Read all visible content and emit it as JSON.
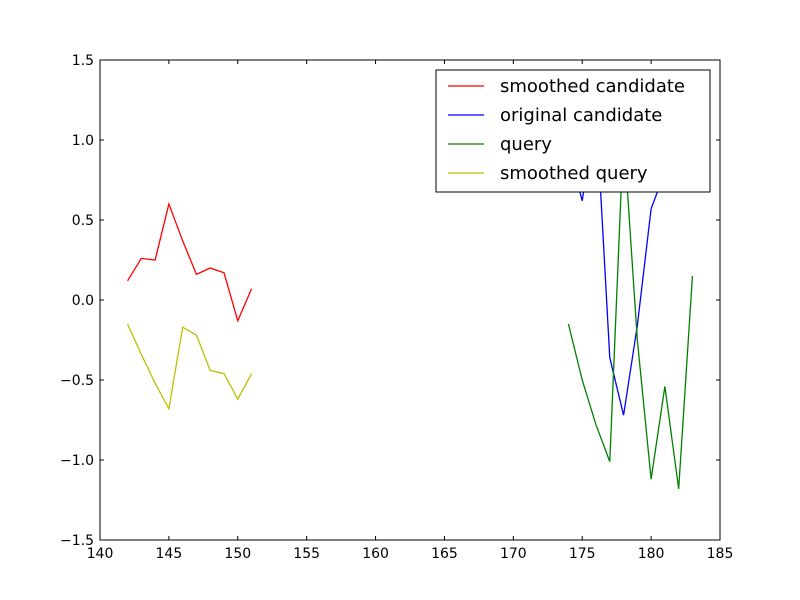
{
  "chart_data": {
    "type": "line",
    "title": "",
    "xlabel": "",
    "ylabel": "",
    "xlim": [
      140,
      185
    ],
    "ylim": [
      -1.5,
      1.5
    ],
    "xticks": [
      "140",
      "145",
      "150",
      "155",
      "160",
      "165",
      "170",
      "175",
      "180",
      "185"
    ],
    "yticks": [
      "−1.5",
      "−1.0",
      "−0.5",
      "0.0",
      "0.5",
      "1.0",
      "1.5"
    ],
    "grid": false,
    "legend_position": "top-right",
    "series": [
      {
        "name": "smoothed candidate",
        "color": "#ff0000",
        "x": [
          142,
          143,
          144,
          145,
          146,
          147,
          148,
          149,
          150,
          151
        ],
        "y": [
          0.12,
          0.26,
          0.25,
          0.6,
          0.37,
          0.16,
          0.2,
          0.17,
          -0.13,
          0.07
        ]
      },
      {
        "name": "original candidate",
        "color": "#0000ff",
        "x": [
          174,
          175,
          176,
          177,
          178,
          179,
          180,
          181,
          182,
          183
        ],
        "y": [
          0.95,
          0.62,
          1.2,
          -0.36,
          -0.72,
          -0.16,
          0.57,
          0.8,
          1.3,
          1.4
        ]
      },
      {
        "name": "query",
        "color": "#008000",
        "x": [
          174,
          175,
          176,
          177,
          178,
          179,
          180,
          181,
          182,
          183
        ],
        "y": [
          -0.15,
          -0.5,
          -0.78,
          -1.01,
          1.05,
          -0.25,
          -1.12,
          -0.54,
          -1.18,
          0.15
        ]
      },
      {
        "name": "smoothed query",
        "color": "#bfbf00",
        "x": [
          142,
          143,
          144,
          145,
          146,
          147,
          148,
          149,
          150,
          151
        ],
        "y": [
          -0.15,
          -0.34,
          -0.52,
          -0.68,
          -0.17,
          -0.22,
          -0.44,
          -0.46,
          -0.62,
          -0.46
        ]
      }
    ]
  }
}
